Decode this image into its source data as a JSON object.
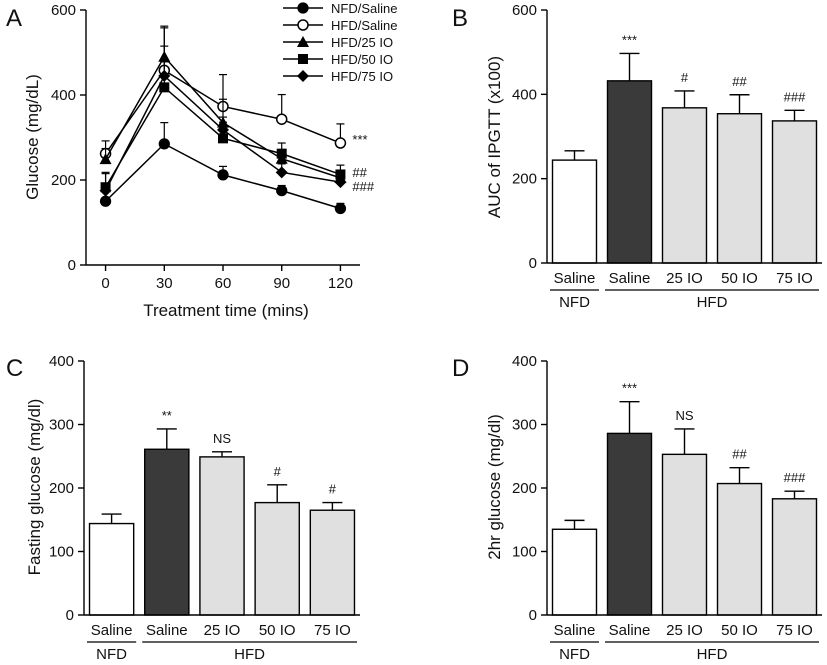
{
  "colors": {
    "NFD/Saline": "#ffffff",
    "HFD/Saline": "#3a3a3a",
    "HFD/IO": "#e0e0e0",
    "line": "#000000"
  },
  "chart_data": [
    {
      "panel": "A",
      "type": "line",
      "xlabel": "Treatment time (mins)",
      "ylabel": "Glucose (mg/dL)",
      "x": [
        0,
        30,
        60,
        90,
        120
      ],
      "xticks": [
        "0",
        "30",
        "60",
        "90",
        "120"
      ],
      "xlim": [
        -10,
        130
      ],
      "ylim": [
        0,
        600
      ],
      "yticks": [
        "0",
        "200",
        "400",
        "600"
      ],
      "legend_position": "top-right",
      "series": [
        {
          "name": "NFD/Saline",
          "marker": "circle-filled",
          "values": [
            150,
            285,
            212,
            175,
            133
          ],
          "err": [
            8,
            50,
            20,
            12,
            12
          ]
        },
        {
          "name": "HFD/Saline",
          "marker": "circle-open",
          "values": [
            262,
            458,
            373,
            343,
            287
          ],
          "err": [
            30,
            100,
            75,
            58,
            45
          ]
        },
        {
          "name": "HFD/25 IO",
          "marker": "triangle",
          "values": [
            249,
            490,
            335,
            250,
            205
          ],
          "err": [
            25,
            72,
            55,
            20,
            15
          ]
        },
        {
          "name": "HFD/50 IO",
          "marker": "square",
          "values": [
            183,
            418,
            298,
            262,
            213
          ],
          "err": [
            35,
            60,
            38,
            25,
            22
          ]
        },
        {
          "name": "HFD/75 IO",
          "marker": "diamond",
          "values": [
            175,
            445,
            318,
            218,
            195
          ],
          "err": [
            40,
            70,
            30,
            20,
            10
          ]
        }
      ],
      "annotations": [
        {
          "text": "***",
          "series": "HFD/Saline"
        },
        {
          "text": "##",
          "series": "HFD/50 IO"
        },
        {
          "text": "###",
          "series": "HFD/75 IO"
        }
      ]
    },
    {
      "panel": "B",
      "type": "bar",
      "ylabel": "AUC of IPGTT (x100)",
      "categories": [
        "Saline",
        "Saline",
        "25 IO",
        "50 IO",
        "75 IO"
      ],
      "groups": [
        {
          "label": "NFD",
          "count": 1
        },
        {
          "label": "HFD",
          "count": 4
        }
      ],
      "values": [
        244,
        432,
        368,
        354,
        337
      ],
      "err": [
        22,
        65,
        40,
        45,
        25
      ],
      "sig": [
        "",
        "***",
        "#",
        "##",
        "###"
      ],
      "ylim": [
        0,
        600
      ],
      "yticks": [
        "0",
        "200",
        "400",
        "600"
      ]
    },
    {
      "panel": "C",
      "type": "bar",
      "ylabel": "Fasting glucose (mg/dl)",
      "categories": [
        "Saline",
        "Saline",
        "25 IO",
        "50 IO",
        "75 IO"
      ],
      "groups": [
        {
          "label": "NFD",
          "count": 1
        },
        {
          "label": "HFD",
          "count": 4
        }
      ],
      "values": [
        144,
        261,
        249,
        177,
        165
      ],
      "err": [
        15,
        32,
        8,
        28,
        12
      ],
      "sig": [
        "",
        "**",
        "NS",
        "#",
        "#"
      ],
      "ylim": [
        0,
        400
      ],
      "yticks": [
        "0",
        "100",
        "200",
        "300",
        "400"
      ]
    },
    {
      "panel": "D",
      "type": "bar",
      "ylabel": "2hr glucose (mg/dl)",
      "categories": [
        "Saline",
        "Saline",
        "25 IO",
        "50 IO",
        "75 IO"
      ],
      "groups": [
        {
          "label": "NFD",
          "count": 1
        },
        {
          "label": "HFD",
          "count": 4
        }
      ],
      "values": [
        135,
        286,
        253,
        207,
        183
      ],
      "err": [
        14,
        50,
        40,
        25,
        12
      ],
      "sig": [
        "",
        "***",
        "NS",
        "##",
        "###"
      ],
      "ylim": [
        0,
        400
      ],
      "yticks": [
        "0",
        "100",
        "200",
        "300",
        "400"
      ]
    }
  ]
}
